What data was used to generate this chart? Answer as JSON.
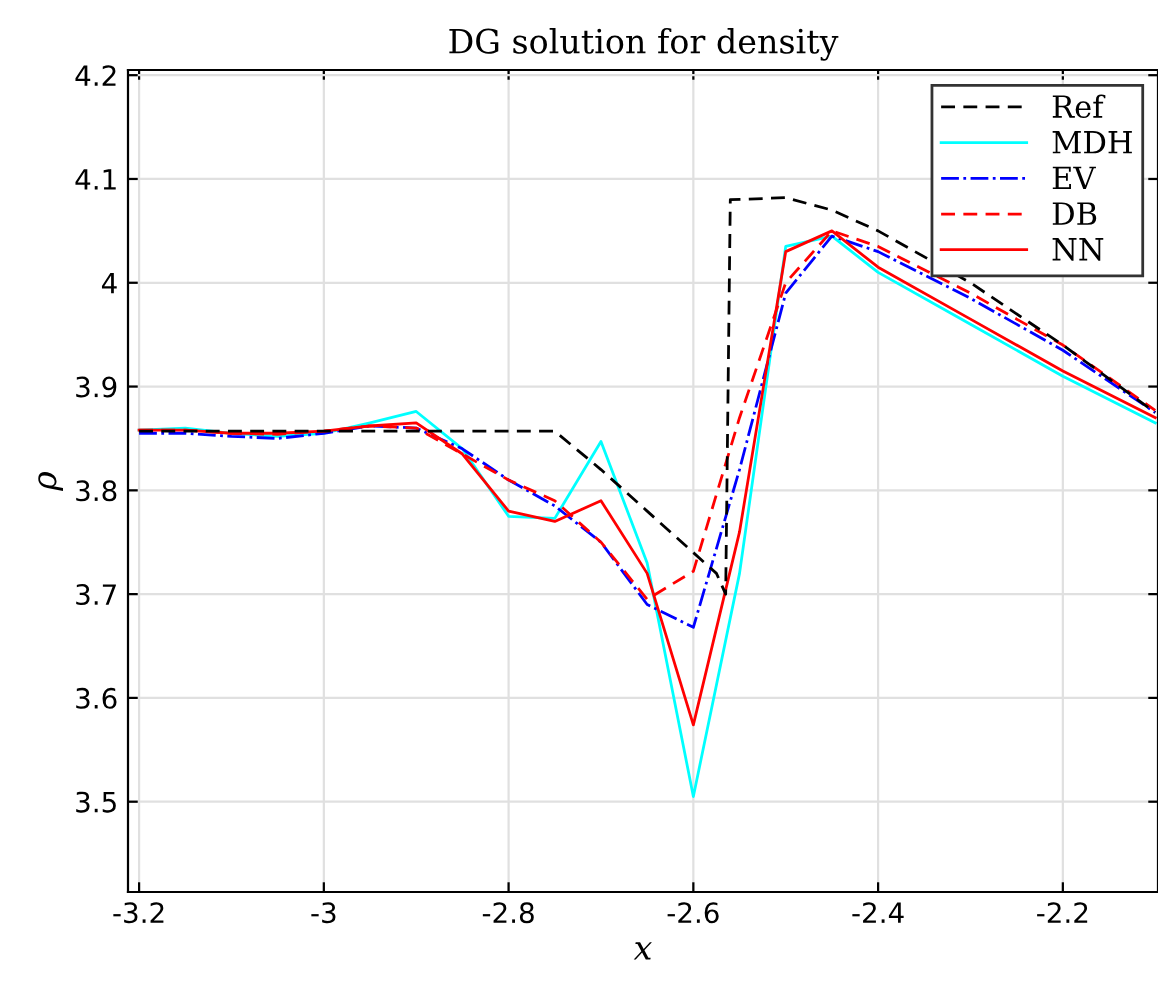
{
  "chart_data": {
    "type": "line",
    "title": "DG solution for density",
    "xlabel": "x",
    "ylabel": "ρ",
    "x": [
      -3.2,
      -3.15,
      -3.1,
      -3.05,
      -3.0,
      -2.95,
      -2.9,
      -2.85,
      -2.8,
      -2.75,
      -2.7,
      -2.65,
      -2.6,
      -2.55,
      -2.5,
      -2.45,
      -2.4,
      -2.3,
      -2.2,
      -2.1
    ],
    "xlim": [
      -3.212,
      -2.097
    ],
    "xticks": [
      -3.2,
      -3,
      -2.8,
      -2.6,
      -2.4,
      -2.2
    ],
    "ylim": [
      3.413,
      4.205
    ],
    "yticks": [
      3.5,
      3.6,
      3.7,
      3.8,
      3.9,
      4,
      4.1,
      4.2
    ],
    "grid": true,
    "legend": "top right",
    "marker": "none",
    "series": [
      {
        "name": "Ref",
        "color": "#000000",
        "line_style": "dashed",
        "x": [
          -3.2,
          -2.75,
          -2.7,
          -2.65,
          -2.6,
          -2.575,
          -2.565,
          -2.56,
          -2.5,
          -2.45,
          -2.4,
          -2.3,
          -2.2,
          -2.1
        ],
        "values": [
          3.857,
          3.857,
          3.82,
          3.78,
          3.74,
          3.72,
          3.7,
          4.08,
          4.082,
          4.07,
          4.05,
          4.0,
          3.94,
          3.875
        ]
      },
      {
        "name": "MDH",
        "color": "#00ffff",
        "line_style": "solid",
        "values": [
          3.858,
          3.86,
          3.855,
          3.852,
          3.855,
          3.865,
          3.876,
          3.84,
          3.775,
          3.773,
          3.847,
          3.73,
          3.505,
          3.72,
          4.035,
          4.045,
          4.01,
          3.96,
          3.91,
          3.865
        ]
      },
      {
        "name": "EV",
        "color": "#0000ff",
        "line_style": "dashdot",
        "values": [
          3.855,
          3.855,
          3.852,
          3.85,
          3.855,
          3.862,
          3.86,
          3.84,
          3.81,
          3.785,
          3.75,
          3.69,
          3.668,
          3.82,
          3.99,
          4.045,
          4.03,
          3.985,
          3.935,
          3.875
        ]
      },
      {
        "name": "DB",
        "color": "#ff0000",
        "line_style": "dashed",
        "values": [
          3.858,
          3.858,
          3.855,
          3.854,
          3.857,
          3.862,
          3.86,
          3.835,
          3.81,
          3.79,
          3.75,
          3.695,
          3.722,
          3.87,
          4.0,
          4.05,
          4.035,
          3.99,
          3.94,
          3.877
        ]
      },
      {
        "name": "NN",
        "color": "#ff0000",
        "line_style": "solid",
        "values": [
          3.858,
          3.858,
          3.855,
          3.855,
          3.857,
          3.862,
          3.865,
          3.835,
          3.78,
          3.77,
          3.79,
          3.72,
          3.574,
          3.76,
          4.03,
          4.05,
          4.015,
          3.965,
          3.915,
          3.87
        ]
      }
    ]
  }
}
